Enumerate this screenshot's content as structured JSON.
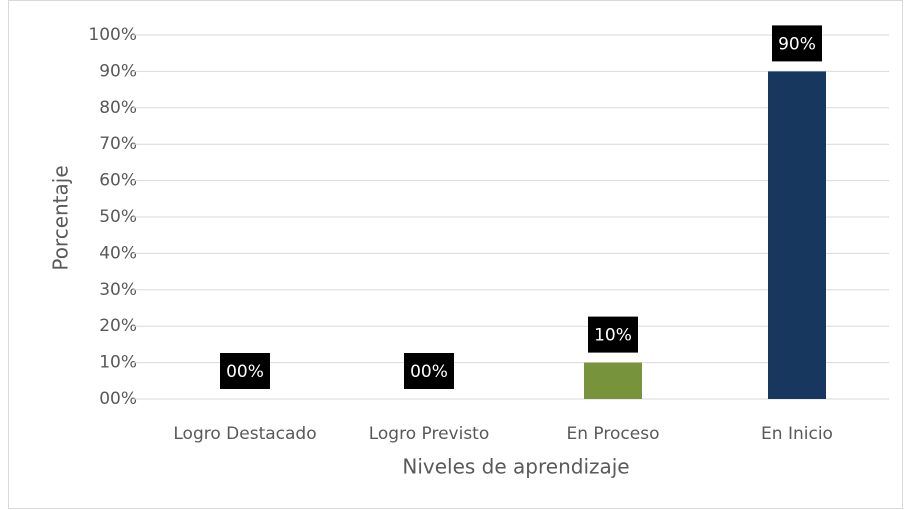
{
  "chart_data": {
    "type": "bar",
    "categories": [
      "Logro Destacado",
      "Logro Previsto",
      "En Proceso",
      "En Inicio"
    ],
    "values": [
      0,
      0,
      10,
      90
    ],
    "value_labels": [
      "00%",
      "00%",
      "10%",
      "90%"
    ],
    "colors": [
      null,
      null,
      "#77933c",
      "#17375e"
    ],
    "xlabel": "Niveles de aprendizaje",
    "ylabel": "Porcentaje",
    "ylim": [
      0,
      100
    ],
    "yticks": [
      {
        "value": 0,
        "label": "00%"
      },
      {
        "value": 10,
        "label": "10%"
      },
      {
        "value": 20,
        "label": "20%"
      },
      {
        "value": 30,
        "label": "30%"
      },
      {
        "value": 40,
        "label": "40%"
      },
      {
        "value": 50,
        "label": "50%"
      },
      {
        "value": 60,
        "label": "60%"
      },
      {
        "value": 70,
        "label": "70%"
      },
      {
        "value": 80,
        "label": "80%"
      },
      {
        "value": 90,
        "label": "90%"
      },
      {
        "value": 100,
        "label": "100%"
      }
    ],
    "grid": true
  }
}
